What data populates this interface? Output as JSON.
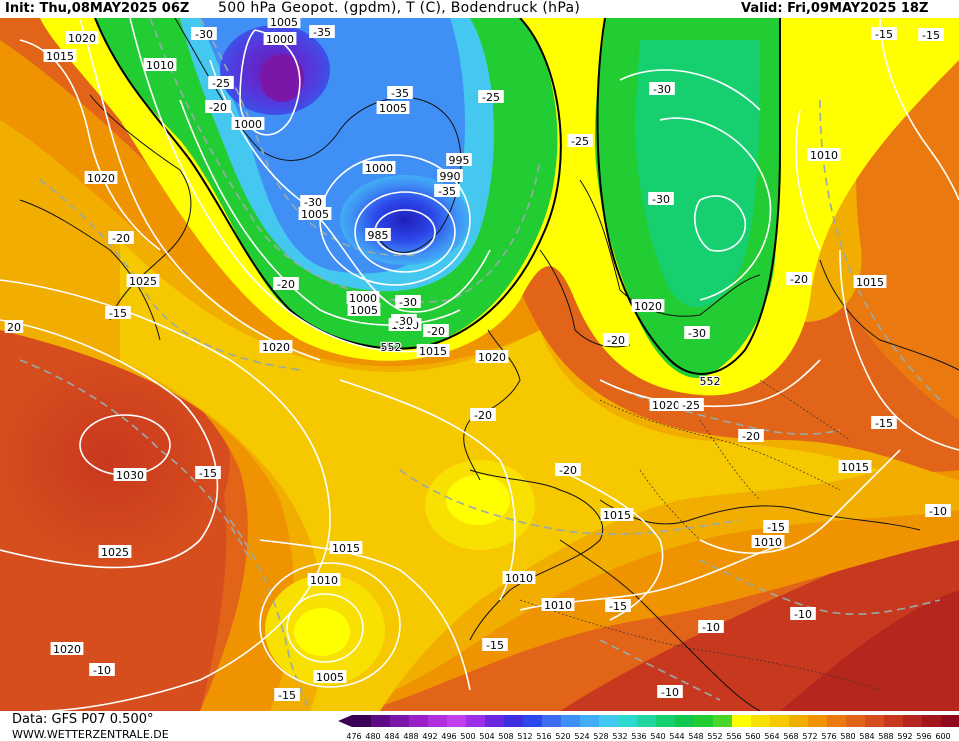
{
  "header": {
    "init": "Init: Thu,08MAY2025 06Z",
    "title": "500 hPa Geopot. (gpdm), T (C), Bodendruck (hPa)",
    "valid": "Valid: Fri,09MAY2025 18Z"
  },
  "footer": {
    "data": "Data: GFS P07 0.500°",
    "site": "WWW.WETTERZENTRALE.DE"
  },
  "legend": {
    "values": [
      "476",
      "480",
      "484",
      "488",
      "492",
      "496",
      "500",
      "504",
      "508",
      "512",
      "516",
      "520",
      "524",
      "528",
      "532",
      "536",
      "540",
      "544",
      "548",
      "552",
      "556",
      "560",
      "564",
      "568",
      "572",
      "576",
      "580",
      "584",
      "588",
      "592",
      "596",
      "600"
    ],
    "colors": [
      "#3a0055",
      "#5c0a86",
      "#7a16a8",
      "#9a20c8",
      "#b030e0",
      "#c040f0",
      "#9b30e8",
      "#6a28e0",
      "#3e2ee0",
      "#2c48ea",
      "#3c6cf0",
      "#3f8ff5",
      "#42aef5",
      "#44c8f0",
      "#2fd9cf",
      "#22d6a0",
      "#16d070",
      "#10c850",
      "#22cc33",
      "#48d62a",
      "#ffff00",
      "#f8e000",
      "#f5c800",
      "#f2ae00",
      "#ef9400",
      "#ea7a10",
      "#e26418",
      "#d74e1e",
      "#c8381e",
      "#b5261e",
      "#a2161c",
      "#8e0a1c"
    ]
  },
  "map_labels": {
    "isobars": [
      {
        "text": "1005"
      },
      {
        "text": "1000"
      },
      {
        "text": "1020"
      },
      {
        "text": "1015"
      },
      {
        "text": "1010"
      },
      {
        "text": "1000"
      },
      {
        "text": "1005"
      },
      {
        "text": "995"
      },
      {
        "text": "990"
      },
      {
        "text": "1000"
      },
      {
        "text": "1005"
      },
      {
        "text": "985"
      },
      {
        "text": "1000"
      },
      {
        "text": "1005"
      },
      {
        "text": "1010"
      },
      {
        "text": "1015"
      },
      {
        "text": "1020"
      },
      {
        "text": "1025"
      },
      {
        "text": "1020"
      },
      {
        "text": "20"
      },
      {
        "text": "1020"
      },
      {
        "text": "1020"
      },
      {
        "text": "1010"
      },
      {
        "text": "1015"
      },
      {
        "text": "1020"
      },
      {
        "text": "1030"
      },
      {
        "text": "1025"
      },
      {
        "text": "1015"
      },
      {
        "text": "1010"
      },
      {
        "text": "1005"
      },
      {
        "text": "1020"
      },
      {
        "text": "1015"
      },
      {
        "text": "1010"
      },
      {
        "text": "1010"
      },
      {
        "text": "1015"
      },
      {
        "text": "1010"
      }
    ],
    "temps": [
      {
        "text": "-30"
      },
      {
        "text": "-35"
      },
      {
        "text": "-25"
      },
      {
        "text": "-20"
      },
      {
        "text": "-35"
      },
      {
        "text": "-25"
      },
      {
        "text": "-30"
      },
      {
        "text": "-35"
      },
      {
        "text": "-30"
      },
      {
        "text": "-30"
      },
      {
        "text": "-25"
      },
      {
        "text": "-15"
      },
      {
        "text": "-20"
      },
      {
        "text": "-20"
      },
      {
        "text": "-15"
      },
      {
        "text": "-30"
      },
      {
        "text": "-30"
      },
      {
        "text": "-20"
      },
      {
        "text": "-20"
      },
      {
        "text": "-30"
      },
      {
        "text": "-20"
      },
      {
        "text": "-25"
      },
      {
        "text": "-20"
      },
      {
        "text": "-20"
      },
      {
        "text": "-15"
      },
      {
        "text": "-15"
      },
      {
        "text": "-15"
      },
      {
        "text": "-15"
      },
      {
        "text": "-10"
      },
      {
        "text": "-10"
      },
      {
        "text": "-10"
      },
      {
        "text": "-10"
      },
      {
        "text": "-15"
      },
      {
        "text": "-15"
      },
      {
        "text": "-20"
      },
      {
        "text": "-15"
      },
      {
        "text": "-10"
      }
    ],
    "geopot": [
      {
        "text": "552"
      },
      {
        "text": "552"
      }
    ]
  },
  "colors": {
    "deep_red": "#c4341e",
    "orange": "#ef9400",
    "yellow": "#ffff00",
    "green": "#22cc33",
    "blue": "#3c6cf0",
    "purple": "#7a16a8"
  }
}
